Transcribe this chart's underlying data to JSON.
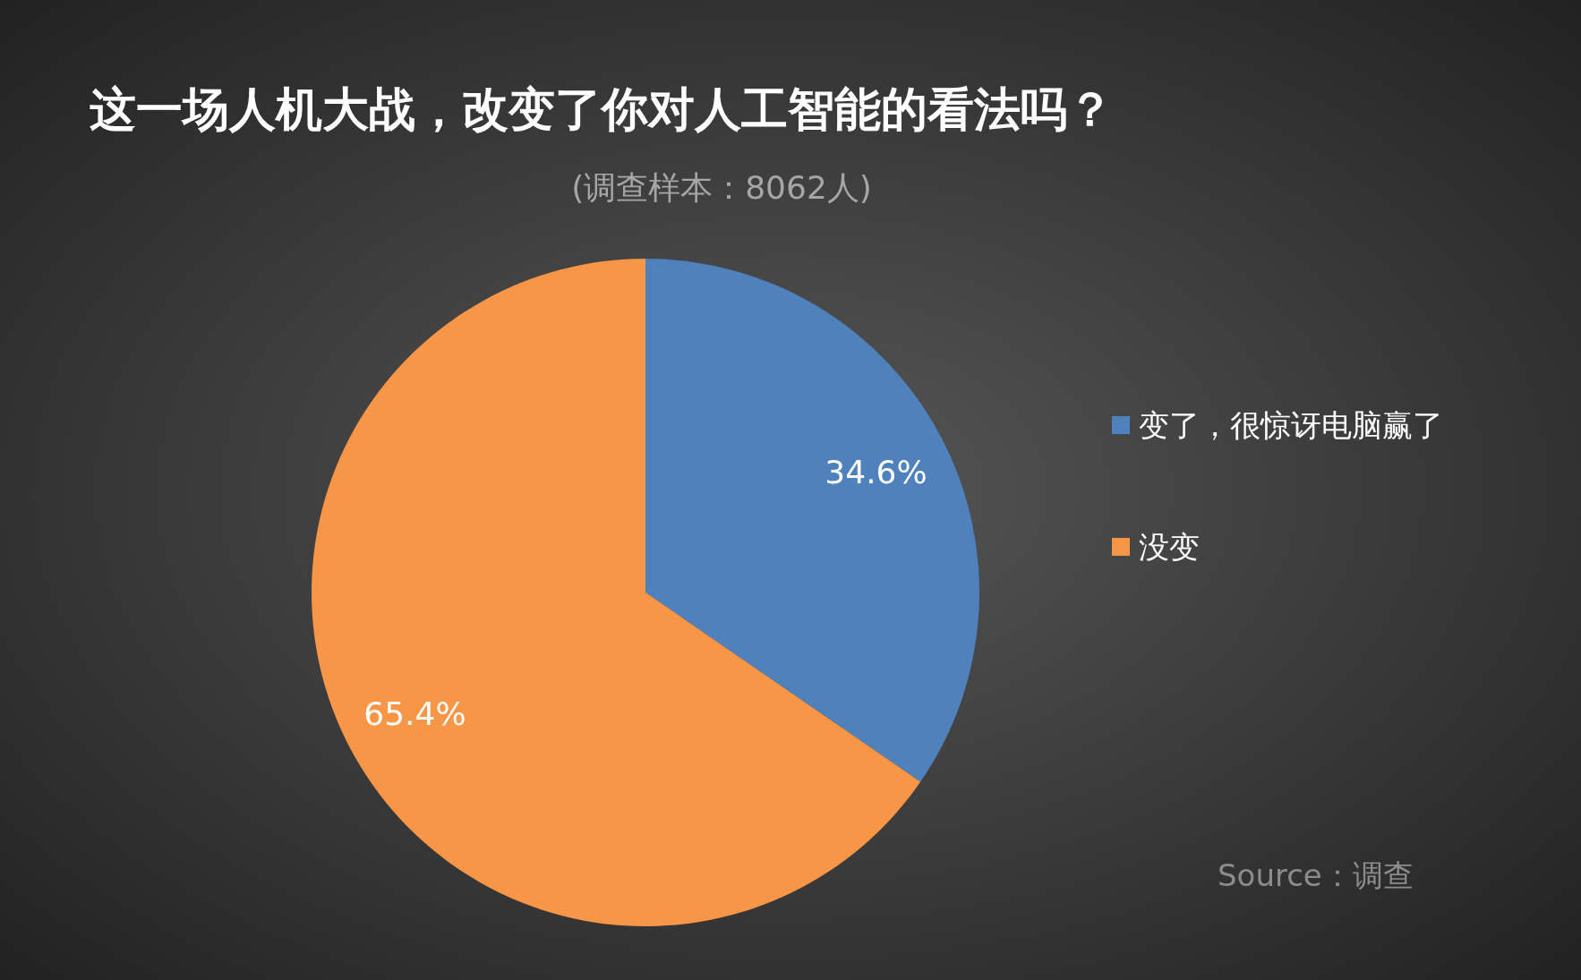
{
  "chart_data": {
    "type": "pie",
    "title": "这一场人机大战，改变了你对人工智能的看法吗？",
    "subtitle": "(调查样本：8062人)",
    "categories": [
      "变了，很惊讶电脑赢了",
      "没变"
    ],
    "values": [
      34.6,
      65.4
    ],
    "colors": [
      "#4f81bd",
      "#f79646"
    ],
    "value_labels": [
      "34.6%",
      "65.4%"
    ],
    "legend": "right",
    "annotations": [
      "Source：调查"
    ]
  }
}
